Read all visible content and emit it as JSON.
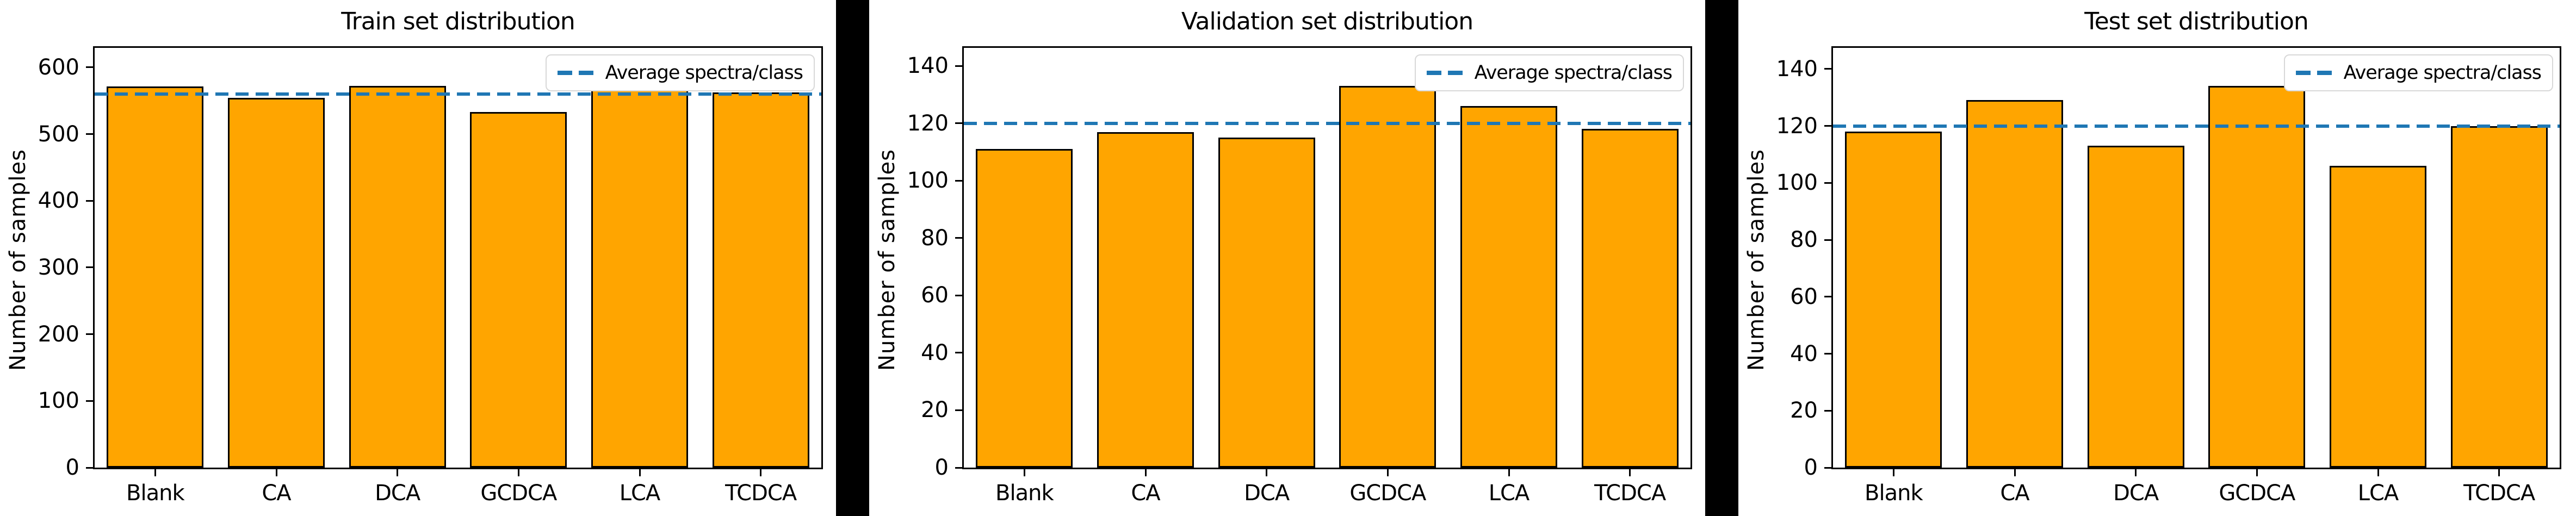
{
  "figure": {
    "background": "#FFFFFF",
    "separator_color": "#000000",
    "bar_color": "#FFA500",
    "bar_edge_color": "#000000",
    "average_line_color": "#1F77B4",
    "legend_border_color": "#D8D8D8",
    "text_color": "#000000"
  },
  "chart_data": [
    {
      "type": "bar",
      "title": "Train set distribution",
      "ylabel": "Number of samples",
      "xlabel": "",
      "categories": [
        "Blank",
        "CA",
        "DCA",
        "GCDCA",
        "LCA",
        "TCDCA"
      ],
      "values": [
        571,
        554,
        572,
        533,
        568,
        562
      ],
      "average": 560,
      "legend_label": "Average spectra/class",
      "legend_position": "upper right",
      "grid": false,
      "ylim": [
        0,
        629.2
      ],
      "yticks": [
        0,
        100,
        200,
        300,
        400,
        500,
        600
      ]
    },
    {
      "type": "bar",
      "title": "Validation set distribution",
      "ylabel": "Number of samples",
      "xlabel": "",
      "categories": [
        "Blank",
        "CA",
        "DCA",
        "GCDCA",
        "LCA",
        "TCDCA"
      ],
      "values": [
        111,
        117,
        115,
        133,
        126,
        118
      ],
      "average": 120,
      "legend_label": "Average spectra/class",
      "legend_position": "upper right",
      "grid": false,
      "ylim": [
        0,
        146.3
      ],
      "yticks": [
        0,
        20,
        40,
        60,
        80,
        100,
        120,
        140
      ]
    },
    {
      "type": "bar",
      "title": "Test set distribution",
      "ylabel": "Number of samples",
      "xlabel": "",
      "categories": [
        "Blank",
        "CA",
        "DCA",
        "GCDCA",
        "LCA",
        "TCDCA"
      ],
      "values": [
        118,
        129,
        113,
        134,
        106,
        120
      ],
      "average": 120,
      "legend_label": "Average spectra/class",
      "legend_position": "upper right",
      "grid": false,
      "ylim": [
        0,
        147.4
      ],
      "yticks": [
        0,
        20,
        40,
        60,
        80,
        100,
        120,
        140
      ]
    }
  ]
}
